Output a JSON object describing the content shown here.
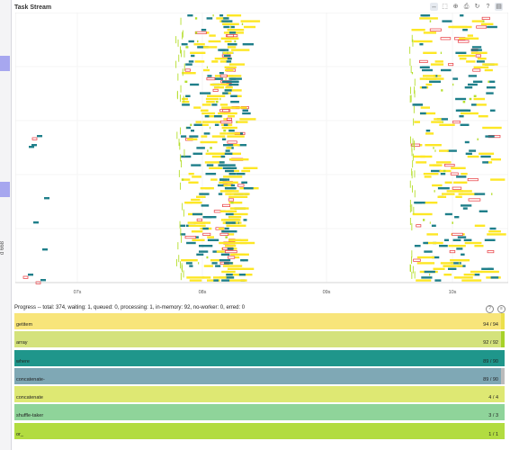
{
  "task_stream": {
    "title": "Task Stream",
    "tools": [
      "pan-icon",
      "box-zoom-icon",
      "wheel-zoom-icon",
      "save-icon",
      "reset-icon",
      "help-icon",
      "hover-icon"
    ],
    "x_ticks": [
      "07s",
      "08s",
      "09s",
      "10s"
    ],
    "colors": {
      "compute": "#fde725",
      "compute_alt": "#b5de2b",
      "transfer": "#1f7f8a",
      "error": "#e8363b"
    }
  },
  "left_edge": {
    "label": "d 668"
  },
  "progress": {
    "title": "Progress -- total: 374, waiting: 1, queued: 0, processing: 1, in-memory: 92, no-worker: 0, erred: 0",
    "tasks": [
      {
        "name": "getitem",
        "count": "94 / 94",
        "fraction": 1.0,
        "color": "#f8e57a",
        "edge": "#ece04b"
      },
      {
        "name": "array",
        "count": "92 / 92",
        "fraction": 1.0,
        "color": "#d4e27c",
        "edge": "#a7d229"
      },
      {
        "name": "where",
        "count": "89 / 90",
        "fraction": 0.99,
        "color": "#1f968b",
        "edge": "#1f968b"
      },
      {
        "name": "concatenate-",
        "count": "89 / 90",
        "fraction": 0.99,
        "color": "#7fa8b5",
        "edge": "#bbbbbb"
      },
      {
        "name": "concatenate",
        "count": "4 / 4",
        "fraction": 1.0,
        "color": "#dee873",
        "edge": "#dee873"
      },
      {
        "name": "shuffle-taker",
        "count": "3 / 3",
        "fraction": 1.0,
        "color": "#8fd49a",
        "edge": "#8fd49a"
      },
      {
        "name": "or_",
        "count": "1 / 1",
        "fraction": 1.0,
        "color": "#b2dc40",
        "edge": "#b2dc40"
      }
    ]
  }
}
